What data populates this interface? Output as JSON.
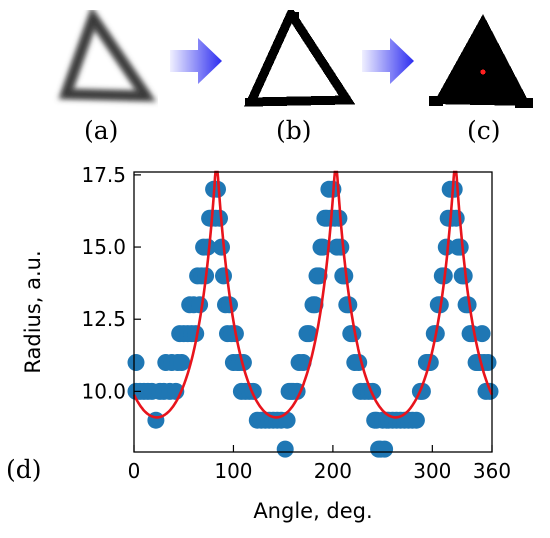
{
  "panels": {
    "a": "(a)",
    "b": "(b)",
    "c": "(c)",
    "d": "(d)"
  },
  "colors": {
    "arrow": "#2d2df0",
    "points": "#1f77b4",
    "fit": "#e8141c",
    "centroid": "#ff2020"
  },
  "chart_data": {
    "type": "scatter",
    "xlabel": "Angle, deg.",
    "ylabel": "Radius, a.u.",
    "xlim": [
      0,
      360
    ],
    "ylim": [
      7.9,
      17.6
    ],
    "xticks": [
      0,
      100,
      200,
      300,
      360
    ],
    "yticks": [
      10.0,
      12.5,
      15.0,
      17.5
    ],
    "xtick_labels": [
      "0",
      "100",
      "200",
      "300",
      "360"
    ],
    "ytick_labels": [
      "10.0",
      "12.5",
      "15.0",
      "17.5"
    ],
    "series": [
      {
        "kind": "points",
        "values": [
          [
            2,
            11
          ],
          [
            2,
            10
          ],
          [
            6,
            10
          ],
          [
            10,
            10
          ],
          [
            14,
            10
          ],
          [
            18,
            10
          ],
          [
            22,
            9
          ],
          [
            26,
            10
          ],
          [
            30,
            10
          ],
          [
            32,
            11
          ],
          [
            36,
            10
          ],
          [
            38,
            11
          ],
          [
            42,
            10
          ],
          [
            44,
            11
          ],
          [
            46,
            12
          ],
          [
            48,
            11
          ],
          [
            50,
            12
          ],
          [
            54,
            12
          ],
          [
            56,
            13
          ],
          [
            58,
            12
          ],
          [
            60,
            13
          ],
          [
            62,
            12
          ],
          [
            64,
            14
          ],
          [
            66,
            13
          ],
          [
            68,
            14
          ],
          [
            70,
            15
          ],
          [
            72,
            14
          ],
          [
            74,
            15
          ],
          [
            76,
            16
          ],
          [
            78,
            16
          ],
          [
            80,
            17
          ],
          [
            82,
            16
          ],
          [
            84,
            17
          ],
          [
            86,
            16
          ],
          [
            88,
            15
          ],
          [
            90,
            14
          ],
          [
            92,
            13
          ],
          [
            94,
            12
          ],
          [
            96,
            13
          ],
          [
            98,
            12
          ],
          [
            100,
            11
          ],
          [
            102,
            12
          ],
          [
            104,
            11
          ],
          [
            106,
            11
          ],
          [
            108,
            10
          ],
          [
            110,
            11
          ],
          [
            112,
            10
          ],
          [
            116,
            10
          ],
          [
            120,
            10
          ],
          [
            124,
            9
          ],
          [
            128,
            9
          ],
          [
            132,
            9
          ],
          [
            136,
            9
          ],
          [
            140,
            9
          ],
          [
            144,
            9
          ],
          [
            148,
            9
          ],
          [
            152,
            8
          ],
          [
            154,
            9
          ],
          [
            156,
            10
          ],
          [
            158,
            10
          ],
          [
            160,
            10
          ],
          [
            164,
            10
          ],
          [
            166,
            11
          ],
          [
            170,
            11
          ],
          [
            174,
            12
          ],
          [
            176,
            12
          ],
          [
            180,
            13
          ],
          [
            182,
            13
          ],
          [
            184,
            14
          ],
          [
            186,
            14
          ],
          [
            188,
            15
          ],
          [
            190,
            15
          ],
          [
            192,
            16
          ],
          [
            194,
            16
          ],
          [
            196,
            17
          ],
          [
            198,
            16
          ],
          [
            200,
            17
          ],
          [
            202,
            16
          ],
          [
            204,
            15
          ],
          [
            206,
            16
          ],
          [
            208,
            15
          ],
          [
            210,
            14
          ],
          [
            212,
            14
          ],
          [
            214,
            13
          ],
          [
            216,
            13
          ],
          [
            218,
            12
          ],
          [
            220,
            12
          ],
          [
            222,
            11
          ],
          [
            226,
            11
          ],
          [
            228,
            10
          ],
          [
            232,
            10
          ],
          [
            236,
            10
          ],
          [
            240,
            10
          ],
          [
            242,
            9
          ],
          [
            244,
            9
          ],
          [
            246,
            8
          ],
          [
            248,
            8
          ],
          [
            250,
            9
          ],
          [
            252,
            8
          ],
          [
            254,
            9
          ],
          [
            256,
            9
          ],
          [
            260,
            9
          ],
          [
            264,
            9
          ],
          [
            268,
            9
          ],
          [
            272,
            9
          ],
          [
            276,
            9
          ],
          [
            280,
            9
          ],
          [
            284,
            9
          ],
          [
            288,
            10
          ],
          [
            290,
            10
          ],
          [
            294,
            11
          ],
          [
            296,
            11
          ],
          [
            298,
            11
          ],
          [
            302,
            12
          ],
          [
            304,
            12
          ],
          [
            306,
            13
          ],
          [
            308,
            13
          ],
          [
            310,
            14
          ],
          [
            312,
            14
          ],
          [
            314,
            15
          ],
          [
            316,
            16
          ],
          [
            318,
            17
          ],
          [
            320,
            16
          ],
          [
            322,
            17
          ],
          [
            324,
            16
          ],
          [
            326,
            15
          ],
          [
            328,
            15
          ],
          [
            330,
            14
          ],
          [
            332,
            14
          ],
          [
            334,
            13
          ],
          [
            336,
            13
          ],
          [
            338,
            12
          ],
          [
            340,
            12
          ],
          [
            344,
            11
          ],
          [
            346,
            11
          ],
          [
            348,
            11
          ],
          [
            350,
            12
          ],
          [
            352,
            11
          ],
          [
            354,
            10
          ],
          [
            356,
            11
          ],
          [
            358,
            10
          ]
        ]
      },
      {
        "kind": "fit",
        "model": "triangle",
        "apothem": 9.1,
        "vertex_angles": [
          83,
          203,
          323
        ]
      }
    ]
  }
}
